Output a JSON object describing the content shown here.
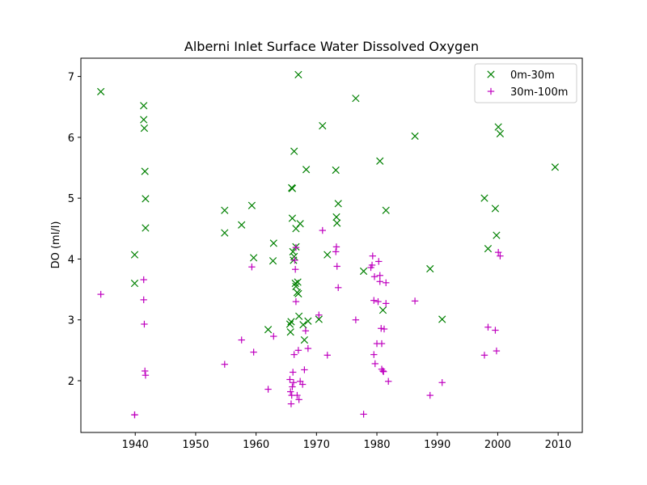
{
  "chart_data": {
    "type": "scatter",
    "title": "Alberni Inlet Surface Water Dissolved Oxygen",
    "xlabel": "",
    "ylabel": "DO (ml/l)",
    "xlim": [
      1931,
      2014
    ],
    "ylim": [
      1.15,
      7.3
    ],
    "x_ticks": [
      1940,
      1950,
      1960,
      1970,
      1980,
      1990,
      2000,
      2010
    ],
    "y_ticks": [
      2,
      3,
      4,
      5,
      6,
      7
    ],
    "grid": false,
    "legend_position": "top-right",
    "series": [
      {
        "name": "0m-30m",
        "marker": "x",
        "color": "#008000",
        "points": [
          [
            1934.3,
            6.75
          ],
          [
            1939.9,
            4.07
          ],
          [
            1939.9,
            3.6
          ],
          [
            1941.4,
            6.52
          ],
          [
            1941.4,
            6.29
          ],
          [
            1941.5,
            6.15
          ],
          [
            1941.6,
            5.44
          ],
          [
            1941.7,
            4.99
          ],
          [
            1941.7,
            4.51
          ],
          [
            1954.8,
            4.8
          ],
          [
            1954.8,
            4.43
          ],
          [
            1957.6,
            4.56
          ],
          [
            1959.3,
            4.88
          ],
          [
            1959.6,
            4.02
          ],
          [
            1962.0,
            2.84
          ],
          [
            1962.8,
            3.97
          ],
          [
            1962.9,
            4.26
          ],
          [
            1965.6,
            2.93
          ],
          [
            1965.7,
            2.8
          ],
          [
            1965.8,
            2.97
          ],
          [
            1965.9,
            5.17
          ],
          [
            1966.0,
            5.16
          ],
          [
            1966.0,
            4.67
          ],
          [
            1966.1,
            4.12
          ],
          [
            1966.2,
            3.98
          ],
          [
            1966.3,
            4.04
          ],
          [
            1966.3,
            5.77
          ],
          [
            1966.5,
            3.6
          ],
          [
            1966.6,
            3.55
          ],
          [
            1966.6,
            4.2
          ],
          [
            1966.6,
            4.5
          ],
          [
            1966.8,
            3.45
          ],
          [
            1966.9,
            3.62
          ],
          [
            1967.0,
            3.43
          ],
          [
            1967.0,
            7.03
          ],
          [
            1967.1,
            3.06
          ],
          [
            1967.3,
            4.58
          ],
          [
            1967.8,
            2.92
          ],
          [
            1968.0,
            2.67
          ],
          [
            1968.3,
            5.47
          ],
          [
            1968.6,
            2.98
          ],
          [
            1970.4,
            3.01
          ],
          [
            1971.0,
            6.19
          ],
          [
            1971.8,
            4.07
          ],
          [
            1973.2,
            5.46
          ],
          [
            1973.3,
            4.69
          ],
          [
            1973.4,
            4.59
          ],
          [
            1973.6,
            4.91
          ],
          [
            1976.5,
            6.64
          ],
          [
            1977.8,
            3.8
          ],
          [
            1980.5,
            5.61
          ],
          [
            1981.0,
            3.16
          ],
          [
            1981.5,
            4.8
          ],
          [
            1986.3,
            6.02
          ],
          [
            1988.8,
            3.84
          ],
          [
            1990.8,
            3.01
          ],
          [
            1997.8,
            5.0
          ],
          [
            1998.4,
            4.17
          ],
          [
            1999.6,
            4.83
          ],
          [
            1999.8,
            4.39
          ],
          [
            2000.1,
            6.17
          ],
          [
            2000.4,
            6.06
          ],
          [
            2009.5,
            5.51
          ]
        ]
      },
      {
        "name": "30m-100m",
        "marker": "+",
        "color": "#bf00bf",
        "points": [
          [
            1934.3,
            3.42
          ],
          [
            1939.9,
            1.44
          ],
          [
            1939.9,
            1.44
          ],
          [
            1941.4,
            3.66
          ],
          [
            1941.4,
            3.33
          ],
          [
            1941.5,
            2.93
          ],
          [
            1941.6,
            2.16
          ],
          [
            1941.7,
            2.09
          ],
          [
            1954.8,
            2.27
          ],
          [
            1957.6,
            2.67
          ],
          [
            1959.3,
            3.87
          ],
          [
            1959.6,
            2.47
          ],
          [
            1962.0,
            1.86
          ],
          [
            1962.9,
            2.73
          ],
          [
            1965.6,
            2.02
          ],
          [
            1965.7,
            1.82
          ],
          [
            1965.8,
            1.62
          ],
          [
            1965.9,
            1.76
          ],
          [
            1966.0,
            1.9
          ],
          [
            1966.1,
            2.14
          ],
          [
            1966.2,
            1.97
          ],
          [
            1966.3,
            2.43
          ],
          [
            1966.4,
            3.98
          ],
          [
            1966.5,
            3.83
          ],
          [
            1966.6,
            4.19
          ],
          [
            1966.6,
            3.3
          ],
          [
            1966.8,
            1.76
          ],
          [
            1967.0,
            2.5
          ],
          [
            1967.1,
            1.69
          ],
          [
            1967.3,
            1.99
          ],
          [
            1967.7,
            1.94
          ],
          [
            1968.0,
            2.18
          ],
          [
            1968.2,
            2.82
          ],
          [
            1968.6,
            2.53
          ],
          [
            1970.4,
            3.08
          ],
          [
            1971.0,
            4.47
          ],
          [
            1971.8,
            2.42
          ],
          [
            1973.2,
            4.12
          ],
          [
            1973.3,
            4.2
          ],
          [
            1973.4,
            3.88
          ],
          [
            1973.6,
            3.53
          ],
          [
            1976.5,
            3.0
          ],
          [
            1977.8,
            1.45
          ],
          [
            1979.0,
            3.86
          ],
          [
            1979.2,
            3.9
          ],
          [
            1979.3,
            4.05
          ],
          [
            1979.5,
            3.32
          ],
          [
            1979.5,
            2.43
          ],
          [
            1979.6,
            3.71
          ],
          [
            1979.7,
            2.28
          ],
          [
            1980.0,
            2.61
          ],
          [
            1980.2,
            3.3
          ],
          [
            1980.3,
            3.96
          ],
          [
            1980.5,
            3.63
          ],
          [
            1980.5,
            3.73
          ],
          [
            1980.7,
            2.86
          ],
          [
            1980.8,
            2.61
          ],
          [
            1980.8,
            2.19
          ],
          [
            1981.0,
            2.16
          ],
          [
            1981.1,
            2.15
          ],
          [
            1981.2,
            2.85
          ],
          [
            1981.5,
            3.61
          ],
          [
            1981.5,
            3.27
          ],
          [
            1981.9,
            1.99
          ],
          [
            1986.3,
            3.31
          ],
          [
            1988.8,
            1.76
          ],
          [
            1990.8,
            1.97
          ],
          [
            1997.8,
            2.42
          ],
          [
            1998.4,
            2.88
          ],
          [
            1999.6,
            2.83
          ],
          [
            1999.8,
            2.49
          ],
          [
            2000.1,
            4.11
          ],
          [
            2000.4,
            4.05
          ]
        ]
      }
    ]
  }
}
